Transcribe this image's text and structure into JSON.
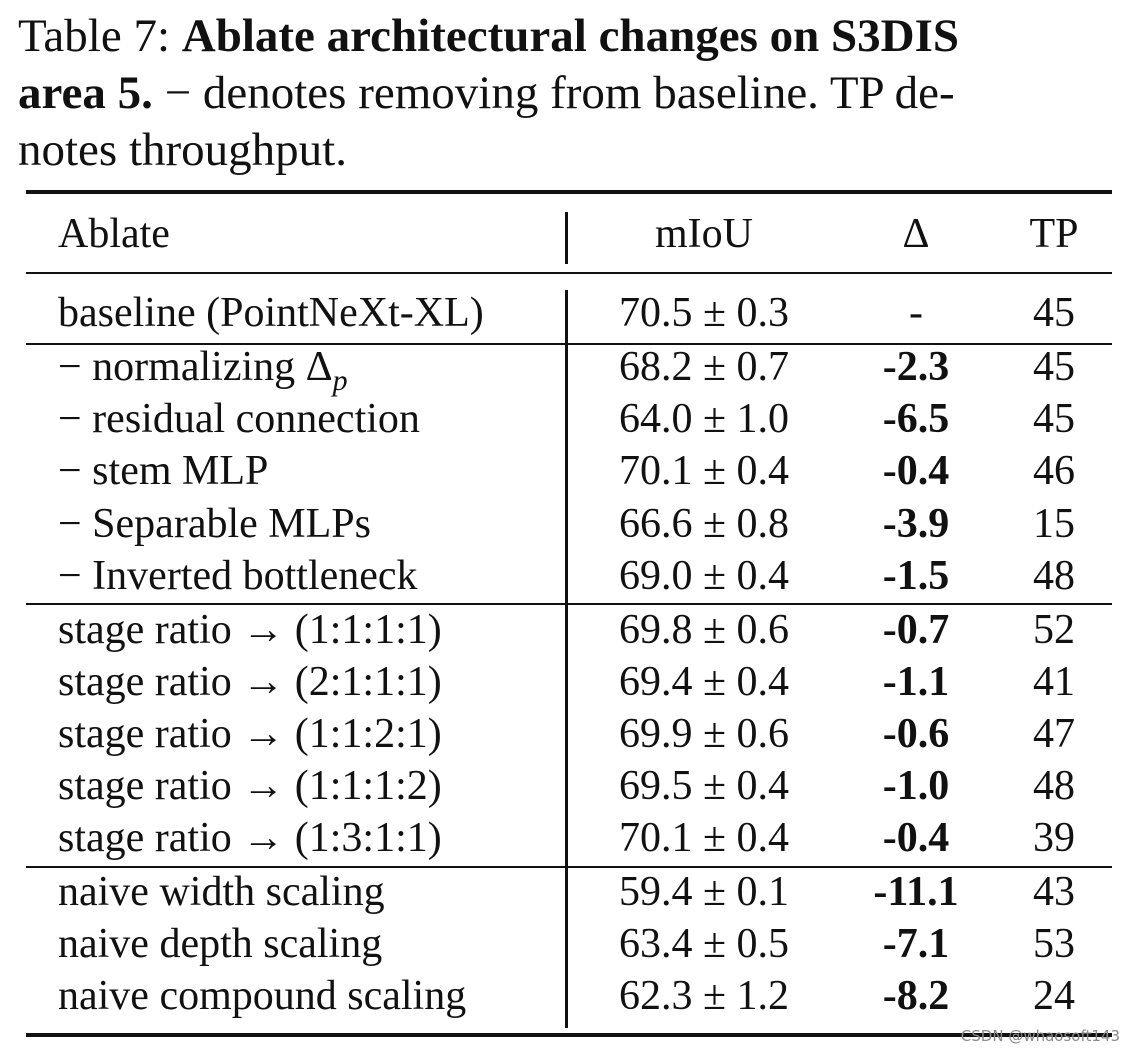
{
  "caption": {
    "line1_prefix": "Table 7: ",
    "line1_bold": "Ablate architectural changes on S3DIS",
    "line2_bold": "area 5.",
    "line2_rest": " − denotes removing from baseline. TP de-",
    "line3": "notes throughput."
  },
  "table": {
    "headers": {
      "ablate": "Ablate",
      "miou": "mIoU",
      "delta": "Δ",
      "tp": "TP"
    },
    "rows": [
      {
        "ablate": "baseline (PointNeXt-XL)",
        "miou": "70.5 ± 0.3",
        "delta": "-",
        "tp": "45"
      },
      {
        "ablate": "− normalizing Δp",
        "miou": "68.2 ± 0.7",
        "delta": "-2.3",
        "tp": "45"
      },
      {
        "ablate": "− residual connection",
        "miou": "64.0 ± 1.0",
        "delta": "-6.5",
        "tp": "45"
      },
      {
        "ablate": "− stem MLP",
        "miou": "70.1 ± 0.4",
        "delta": "-0.4",
        "tp": "46"
      },
      {
        "ablate": "− Separable MLPs",
        "miou": "66.6 ± 0.8",
        "delta": "-3.9",
        "tp": "15"
      },
      {
        "ablate": "− Inverted bottleneck",
        "miou": "69.0 ± 0.4",
        "delta": "-1.5",
        "tp": "48"
      },
      {
        "ablate": "stage ratio → (1:1:1:1)",
        "miou": "69.8 ± 0.6",
        "delta": "-0.7",
        "tp": "52"
      },
      {
        "ablate": "stage ratio → (2:1:1:1)",
        "miou": "69.4 ± 0.4",
        "delta": "-1.1",
        "tp": "41"
      },
      {
        "ablate": "stage ratio → (1:1:2:1)",
        "miou": "69.9 ± 0.6",
        "delta": "-0.6",
        "tp": "47"
      },
      {
        "ablate": "stage ratio → (1:1:1:2)",
        "miou": "69.5 ± 0.4",
        "delta": "-1.0",
        "tp": "48"
      },
      {
        "ablate": "stage ratio → (1:3:1:1)",
        "miou": "70.1 ± 0.4",
        "delta": "-0.4",
        "tp": "39"
      },
      {
        "ablate": "naive width scaling",
        "miou": "59.4 ± 0.1",
        "delta": "-11.1",
        "tp": "43"
      },
      {
        "ablate": "naive depth scaling",
        "miou": "63.4 ± 0.5",
        "delta": "-7.1",
        "tp": "53"
      },
      {
        "ablate": "naive compound scaling",
        "miou": "62.3 ± 1.2",
        "delta": "-8.2",
        "tp": "24"
      }
    ]
  },
  "watermark": "CSDN @whaosoft143"
}
